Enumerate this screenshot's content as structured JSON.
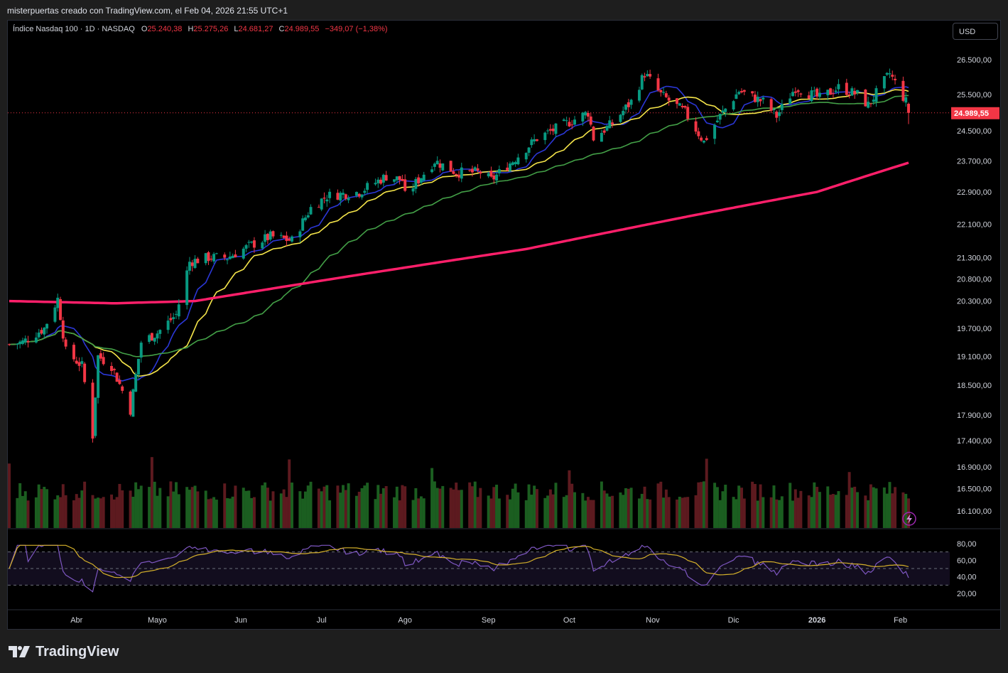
{
  "caption": "misterpuertas creado con TradingView.com, el Feb 04, 2026 21:55 UTC+1",
  "legend": {
    "title": "Índice Nasdaq 100 · 1D · NASDAQ",
    "o_label": "O",
    "o_value": "25.240,38",
    "h_label": "H",
    "h_value": "25.275,26",
    "l_label": "L",
    "l_value": "24.681,27",
    "c_label": "C",
    "c_value": "24.989,55",
    "change": "−349,07 (−1,38%)"
  },
  "currency_button": "USD",
  "last_price_label": "24.989,55",
  "footer_brand": "TradingView",
  "colors": {
    "up": "#089981",
    "down": "#f23645",
    "ma_blue": "#2b37d6",
    "ma_yellow": "#f5e54a",
    "ma_green": "#43a047",
    "ma_pink": "#ff1f6a",
    "rsi": "#7e57c2",
    "rsi_ma": "#d4b02a"
  },
  "chart_data": {
    "type": "candlestick",
    "price_scale": "log",
    "y_ticks": [
      "26.500,00",
      "25.500,00",
      "24.500,00",
      "23.700,00",
      "22.900,00",
      "22.100,00",
      "21.300,00",
      "20.800,00",
      "20.300,00",
      "19.700,00",
      "19.100,00",
      "18.500,00",
      "17.900,00",
      "17.400,00",
      "16.900,00",
      "16.500,00",
      "16.100,00"
    ],
    "y_tick_values": [
      26500,
      25500,
      24500,
      23700,
      22900,
      22100,
      21300,
      20800,
      20300,
      19700,
      19100,
      18500,
      17900,
      17400,
      16900,
      16500,
      16100
    ],
    "x_labels": [
      "Abr",
      "Mayo",
      "Jun",
      "Jul",
      "Ago",
      "Sep",
      "Oct",
      "Nov",
      "Dic",
      "2026",
      "Feb"
    ],
    "x_label_dates": [
      "2025-04-01",
      "2025-05-01",
      "2025-06-01",
      "2025-07-01",
      "2025-08-01",
      "2025-09-01",
      "2025-10-01",
      "2025-11-01",
      "2025-12-01",
      "2026-01-01",
      "2026-02-01"
    ],
    "start_date": "2025-03-07",
    "close_path": [
      [
        "2025-03-07",
        19350
      ],
      [
        "2025-03-12",
        19400
      ],
      [
        "2025-03-20",
        19700
      ],
      [
        "2025-03-25",
        20350
      ],
      [
        "2025-03-28",
        19200
      ],
      [
        "2025-04-03",
        18900
      ],
      [
        "2025-04-07",
        17500
      ],
      [
        "2025-04-09",
        19100
      ],
      [
        "2025-04-14",
        18900
      ],
      [
        "2025-04-21",
        18000
      ],
      [
        "2025-04-25",
        19400
      ],
      [
        "2025-05-01",
        19600
      ],
      [
        "2025-05-08",
        20000
      ],
      [
        "2025-05-13",
        21200
      ],
      [
        "2025-05-20",
        21300
      ],
      [
        "2025-05-27",
        21300
      ],
      [
        "2025-06-05",
        21600
      ],
      [
        "2025-06-12",
        21800
      ],
      [
        "2025-06-20",
        21700
      ],
      [
        "2025-06-27",
        22500
      ],
      [
        "2025-07-03",
        22800
      ],
      [
        "2025-07-15",
        22900
      ],
      [
        "2025-07-25",
        23300
      ],
      [
        "2025-07-31",
        23200
      ],
      [
        "2025-08-01",
        22800
      ],
      [
        "2025-08-12",
        23700
      ],
      [
        "2025-08-20",
        23400
      ],
      [
        "2025-08-29",
        23400
      ],
      [
        "2025-09-02",
        23200
      ],
      [
        "2025-09-10",
        23700
      ],
      [
        "2025-09-19",
        24300
      ],
      [
        "2025-09-30",
        24700
      ],
      [
        "2025-10-08",
        25000
      ],
      [
        "2025-10-10",
        24300
      ],
      [
        "2025-10-17",
        24700
      ],
      [
        "2025-10-24",
        25300
      ],
      [
        "2025-10-29",
        26100
      ],
      [
        "2025-11-04",
        25500
      ],
      [
        "2025-11-13",
        25000
      ],
      [
        "2025-11-20",
        24200
      ],
      [
        "2025-11-26",
        24900
      ],
      [
        "2025-12-03",
        25600
      ],
      [
        "2025-12-12",
        25300
      ],
      [
        "2025-12-17",
        24900
      ],
      [
        "2025-12-24",
        25700
      ],
      [
        "2026-01-02",
        25400
      ],
      [
        "2026-01-09",
        25700
      ],
      [
        "2026-01-16",
        25500
      ],
      [
        "2026-01-20",
        25200
      ],
      [
        "2026-01-28",
        26100
      ],
      [
        "2026-02-03",
        25300
      ],
      [
        "2026-02-04",
        24989.55
      ]
    ],
    "moving_averages": [
      {
        "color": "#2b37d6",
        "period": 10
      },
      {
        "color": "#f5e54a",
        "period": 20
      },
      {
        "color": "#43a047",
        "period": 50
      },
      {
        "color": "#ff1f6a",
        "period": 200,
        "anchors": [
          [
            "2025-03-07",
            20300
          ],
          [
            "2025-04-15",
            20250
          ],
          [
            "2025-05-15",
            20300
          ],
          [
            "2025-07-15",
            20900
          ],
          [
            "2025-09-15",
            21500
          ],
          [
            "2025-11-15",
            22300
          ],
          [
            "2026-01-01",
            22900
          ],
          [
            "2026-02-04",
            23650
          ]
        ]
      }
    ],
    "last_price": 24989.55,
    "rsi": {
      "y_ticks": [
        "80,00",
        "60,00",
        "40,00",
        "20,00"
      ],
      "y_tick_values": [
        80,
        60,
        40,
        20
      ],
      "bands": [
        70,
        50,
        30
      ],
      "ma_color": "#d4b02a",
      "line_color": "#7e57c2"
    }
  }
}
